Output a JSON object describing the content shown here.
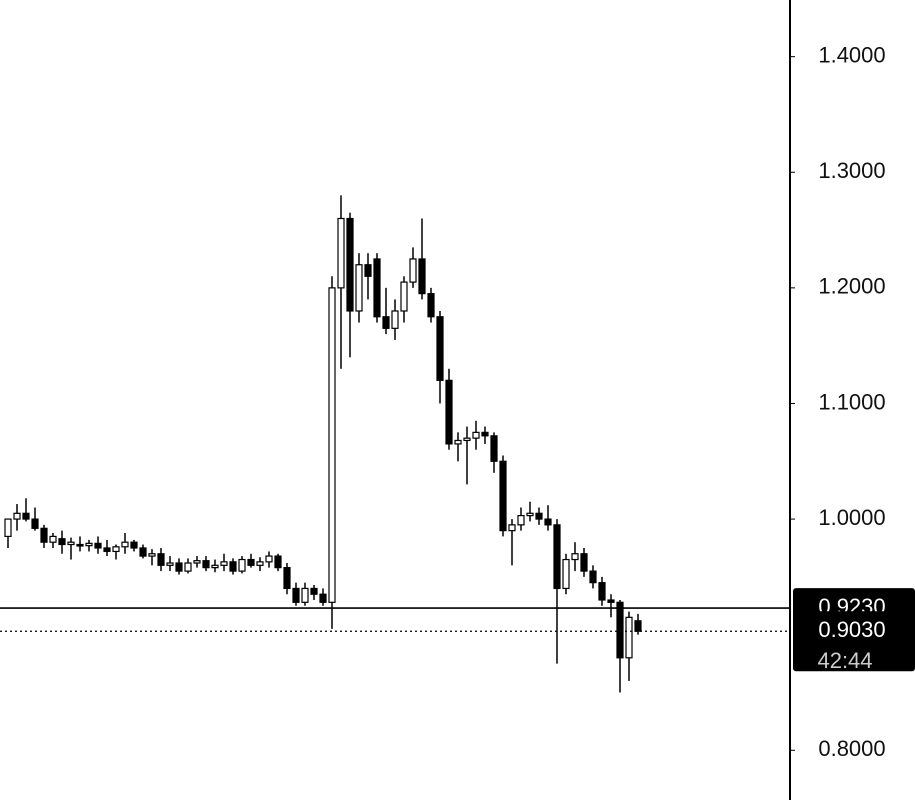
{
  "chart_data": {
    "type": "candlestick",
    "open": [
      0.985,
      1.0,
      1.005,
      1.0,
      0.992,
      0.98,
      0.983,
      0.978,
      0.978,
      0.977,
      0.979,
      0.975,
      0.972,
      0.976,
      0.98,
      0.975,
      0.968,
      0.97,
      0.96,
      0.962,
      0.955,
      0.962,
      0.964,
      0.958,
      0.96,
      0.963,
      0.955,
      0.965,
      0.96,
      0.963,
      0.968,
      0.958,
      0.94,
      0.928,
      0.94,
      0.935,
      0.928,
      1.2,
      1.26,
      1.18,
      1.22,
      1.225,
      1.175,
      1.165,
      1.18,
      1.205,
      1.225,
      1.195,
      1.175,
      1.12,
      1.065,
      1.068,
      1.07,
      1.075,
      1.072,
      1.05,
      0.99,
      0.995,
      1.003,
      1.005,
      1.0,
      0.995,
      0.94,
      0.965,
      0.97,
      0.955,
      0.945,
      0.93,
      0.928,
      0.88,
      0.912
    ],
    "high": [
      1.0,
      1.013,
      1.018,
      1.01,
      0.995,
      0.988,
      0.99,
      0.984,
      0.985,
      0.982,
      0.985,
      0.982,
      0.978,
      0.988,
      0.982,
      0.978,
      0.974,
      0.975,
      0.968,
      0.966,
      0.966,
      0.968,
      0.968,
      0.965,
      0.97,
      0.966,
      0.968,
      0.97,
      0.967,
      0.972,
      0.97,
      0.962,
      0.945,
      0.945,
      0.943,
      0.94,
      1.21,
      1.28,
      1.265,
      1.23,
      1.23,
      1.23,
      1.2,
      1.19,
      1.21,
      1.235,
      1.26,
      1.2,
      1.18,
      1.13,
      1.075,
      1.08,
      1.085,
      1.08,
      1.075,
      1.055,
      1.0,
      1.01,
      1.015,
      1.01,
      1.012,
      1.0,
      0.97,
      0.98,
      0.975,
      0.96,
      0.95,
      0.935,
      0.93,
      0.92,
      0.918
    ],
    "low": [
      0.975,
      0.99,
      0.998,
      0.99,
      0.975,
      0.975,
      0.97,
      0.965,
      0.972,
      0.972,
      0.97,
      0.968,
      0.965,
      0.97,
      0.972,
      0.966,
      0.96,
      0.955,
      0.955,
      0.952,
      0.953,
      0.958,
      0.955,
      0.954,
      0.955,
      0.952,
      0.953,
      0.958,
      0.955,
      0.958,
      0.955,
      0.935,
      0.925,
      0.925,
      0.93,
      0.925,
      0.905,
      1.13,
      1.14,
      1.17,
      1.19,
      1.17,
      1.16,
      1.155,
      1.17,
      1.2,
      1.19,
      1.17,
      1.1,
      1.06,
      1.05,
      1.03,
      1.06,
      1.065,
      1.04,
      0.985,
      0.96,
      0.99,
      0.998,
      0.995,
      0.99,
      0.875,
      0.935,
      0.955,
      0.95,
      0.94,
      0.925,
      0.915,
      0.85,
      0.86,
      0.9
    ],
    "close": [
      1.0,
      1.005,
      1.0,
      0.992,
      0.98,
      0.985,
      0.978,
      0.98,
      0.977,
      0.979,
      0.975,
      0.972,
      0.976,
      0.98,
      0.975,
      0.968,
      0.97,
      0.96,
      0.962,
      0.955,
      0.962,
      0.964,
      0.958,
      0.96,
      0.963,
      0.955,
      0.965,
      0.96,
      0.963,
      0.968,
      0.958,
      0.94,
      0.928,
      0.94,
      0.935,
      0.928,
      1.2,
      1.26,
      1.18,
      1.22,
      1.21,
      1.175,
      1.165,
      1.18,
      1.205,
      1.225,
      1.195,
      1.175,
      1.12,
      1.065,
      1.068,
      1.07,
      1.075,
      1.072,
      1.05,
      0.99,
      0.995,
      1.003,
      1.005,
      1.0,
      0.995,
      0.94,
      0.965,
      0.97,
      0.955,
      0.945,
      0.93,
      0.928,
      0.88,
      0.915,
      0.903
    ],
    "up_color": "#ffffff",
    "down_color": "#000000",
    "ylim": [
      0.757,
      1.449
    ],
    "yticks": [
      {
        "value": 0.8,
        "label": "0.8000"
      },
      {
        "value": 1.0,
        "label": "1.0000"
      },
      {
        "value": 1.1,
        "label": "1.1000"
      },
      {
        "value": 1.2,
        "label": "1.2000"
      },
      {
        "value": 1.3,
        "label": "1.3000"
      },
      {
        "value": 1.4,
        "label": "1.4000"
      }
    ],
    "price_lines": [
      {
        "value": 0.923,
        "label": "0.9230",
        "style": "solid"
      },
      {
        "value": 0.903,
        "label": "0.9030",
        "style": "dotted",
        "countdown": "42:44"
      }
    ]
  }
}
